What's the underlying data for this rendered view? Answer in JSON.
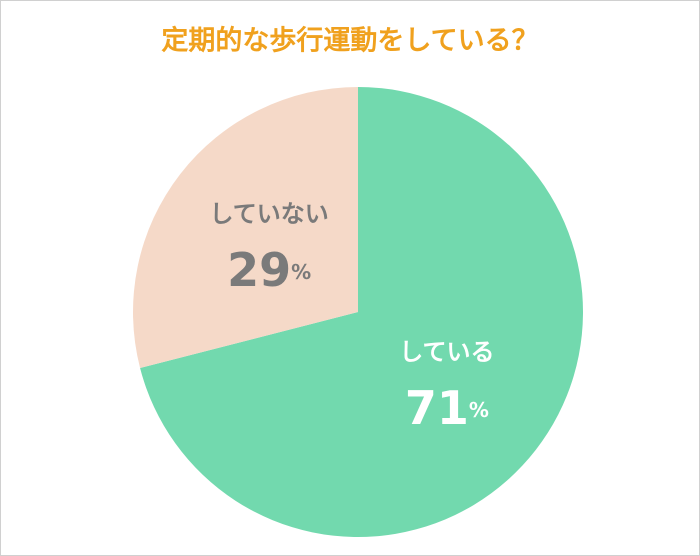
{
  "chart_data": {
    "type": "pie",
    "title": "定期的な歩行運動をしている？",
    "categories": [
      "している",
      "していない"
    ],
    "values": [
      71,
      29
    ],
    "colors": [
      "#72d9ae",
      "#f5d9c8"
    ],
    "label_colors": [
      "#ffffff",
      "#7a7a7a"
    ],
    "unit": "%",
    "start_angle": 90,
    "direction": "clockwise"
  }
}
